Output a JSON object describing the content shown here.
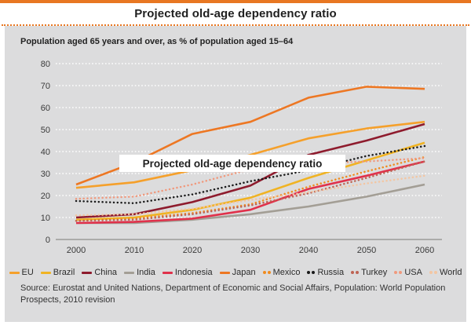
{
  "header": {
    "title": "Projected old-age dependency ratio"
  },
  "chart": {
    "subtitle": "Population aged 65 years and over, as % of population aged 15–64",
    "overlay_label": "Projected old-age dependency ratio"
  },
  "chart_data": {
    "type": "line",
    "title": "Projected old-age dependency ratio",
    "subtitle": "Population aged 65 years and over, as % of population aged 15–64",
    "x": [
      2000,
      2010,
      2020,
      2030,
      2040,
      2050,
      2060
    ],
    "ylim": [
      0,
      80
    ],
    "ytick_step": 10,
    "grid": true,
    "legend_position": "bottom",
    "series": [
      {
        "name": "EU",
        "style": "solid",
        "color": "#F5A02B",
        "values": [
          23.5,
          26.0,
          31.5,
          38.5,
          46.0,
          50.5,
          53.5
        ]
      },
      {
        "name": "Brazil",
        "style": "solid",
        "color": "#F0B323",
        "values": [
          9.0,
          10.0,
          13.5,
          19.0,
          28.0,
          36.0,
          44.0
        ]
      },
      {
        "name": "China",
        "style": "solid",
        "color": "#8E1B2D",
        "values": [
          10.0,
          11.5,
          17.0,
          24.5,
          38.5,
          45.0,
          52.5
        ]
      },
      {
        "name": "India",
        "style": "solid",
        "color": "#A39E95",
        "values": [
          7.5,
          7.5,
          9.0,
          11.5,
          15.0,
          19.5,
          25.0
        ]
      },
      {
        "name": "Indonesia",
        "style": "solid",
        "color": "#E0314B",
        "values": [
          7.5,
          8.0,
          9.5,
          13.5,
          23.0,
          29.0,
          35.5
        ]
      },
      {
        "name": "Japan",
        "style": "solid",
        "color": "#ED7723",
        "values": [
          25.0,
          35.0,
          48.0,
          53.5,
          64.5,
          69.5,
          68.5
        ]
      },
      {
        "name": "Mexico",
        "style": "dotted",
        "color": "#F08B1F",
        "values": [
          8.5,
          9.5,
          12.0,
          16.0,
          24.0,
          31.0,
          37.5
        ]
      },
      {
        "name": "Russia",
        "style": "dotted",
        "color": "#1A1A1A",
        "values": [
          17.5,
          16.5,
          20.5,
          26.5,
          31.5,
          38.0,
          42.5
        ]
      },
      {
        "name": "Turkey",
        "style": "dotted",
        "color": "#BE6353",
        "values": [
          8.5,
          9.0,
          11.5,
          15.5,
          21.0,
          28.0,
          35.5
        ]
      },
      {
        "name": "USA",
        "style": "dotted",
        "color": "#F0997D",
        "values": [
          18.5,
          19.5,
          25.0,
          32.0,
          34.5,
          35.5,
          37.0
        ]
      },
      {
        "name": "World",
        "style": "dotted",
        "color": "#F3C6A2",
        "values": [
          11.0,
          11.5,
          14.0,
          18.0,
          21.5,
          25.5,
          29.0
        ]
      }
    ]
  },
  "footer": {
    "source_line1": "Source: Eurostat and United Nations, Department of Economic and Social Affairs, Population: World",
    "source_line2": "Population Prospects, 2010 revision"
  },
  "colors": {
    "accent": "#E87722",
    "panel_bg": "#DCDCDD",
    "grid": "#FFFFFF",
    "axis_line": "#9B9B99",
    "tick_text": "#3A3A3A"
  }
}
